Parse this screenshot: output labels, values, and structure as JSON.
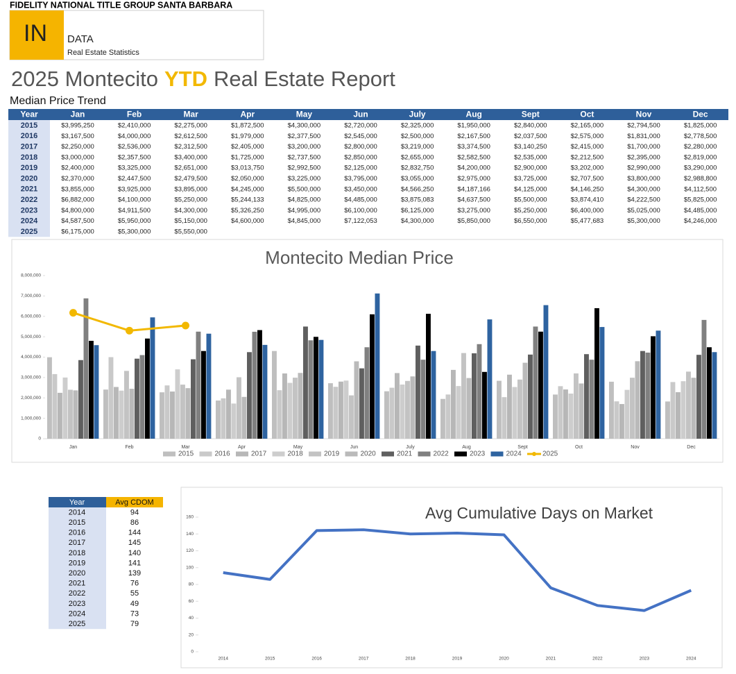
{
  "header": {
    "company": "FIDELITY NATIONAL TITLE GROUP SANTA BARBARA",
    "logo_in": "IN",
    "logo_data": "DATA",
    "logo_sub": "Real Estate Statistics"
  },
  "title": {
    "pre": "2025 Montecito",
    "highlight": "YTD",
    "post": "Real Estate Report"
  },
  "table_title": "Median Price Trend",
  "price_table": {
    "columns": [
      "Year",
      "Jan",
      "Feb",
      "Mar",
      "Apr",
      "May",
      "Jun",
      "July",
      "Aug",
      "Sept",
      "Oct",
      "Nov",
      "Dec"
    ],
    "rows": [
      [
        "2015",
        "$3,995,250",
        "$2,410,000",
        "$2,275,000",
        "$1,872,500",
        "$4,300,000",
        "$2,720,000",
        "$2,325,000",
        "$1,950,000",
        "$2,840,000",
        "$2,165,000",
        "$2,794,500",
        "$1,825,000"
      ],
      [
        "2016",
        "$3,167,500",
        "$4,000,000",
        "$2,612,500",
        "$1,979,000",
        "$2,377,500",
        "$2,545,000",
        "$2,500,000",
        "$2,167,500",
        "$2,037,500",
        "$2,575,000",
        "$1,831,000",
        "$2,778,500"
      ],
      [
        "2017",
        "$2,250,000",
        "$2,536,000",
        "$2,312,500",
        "$2,405,000",
        "$3,200,000",
        "$2,800,000",
        "$3,219,000",
        "$3,374,500",
        "$3,140,250",
        "$2,415,000",
        "$1,700,000",
        "$2,280,000"
      ],
      [
        "2018",
        "$3,000,000",
        "$2,357,500",
        "$3,400,000",
        "$1,725,000",
        "$2,737,500",
        "$2,850,000",
        "$2,655,000",
        "$2,582,500",
        "$2,535,000",
        "$2,212,500",
        "$2,395,000",
        "$2,819,000"
      ],
      [
        "2019",
        "$2,400,000",
        "$3,325,000",
        "$2,651,000",
        "$3,013,750",
        "$2,992,500",
        "$2,125,000",
        "$2,832,750",
        "$4,200,000",
        "$2,900,000",
        "$3,202,000",
        "$2,990,000",
        "$3,290,000"
      ],
      [
        "2020",
        "$2,370,000",
        "$2,447,500",
        "$2,479,500",
        "$2,050,000",
        "$3,225,000",
        "$3,795,000",
        "$3,055,000",
        "$2,975,000",
        "$3,725,000",
        "$2,707,500",
        "$3,800,000",
        "$2,988,800"
      ],
      [
        "2021",
        "$3,855,000",
        "$3,925,000",
        "$3,895,000",
        "$4,245,000",
        "$5,500,000",
        "$3,450,000",
        "$4,566,250",
        "$4,187,166",
        "$4,125,000",
        "$4,146,250",
        "$4,300,000",
        "$4,112,500"
      ],
      [
        "2022",
        "$6,882,000",
        "$4,100,000",
        "$5,250,000",
        "$5,244,133",
        "$4,825,000",
        "$4,485,000",
        "$3,875,083",
        "$4,637,500",
        "$5,500,000",
        "$3,874,410",
        "$4,222,500",
        "$5,825,000"
      ],
      [
        "2023",
        "$4,800,000",
        "$4,911,500",
        "$4,300,000",
        "$5,326,250",
        "$4,995,000",
        "$6,100,000",
        "$6,125,000",
        "$3,275,000",
        "$5,250,000",
        "$6,400,000",
        "$5,025,000",
        "$4,485,000"
      ],
      [
        "2024",
        "$4,587,500",
        "$5,950,000",
        "$5,150,000",
        "$4,600,000",
        "$4,845,000",
        "$7,122,053",
        "$4,300,000",
        "$5,850,000",
        "$6,550,000",
        "$5,477,683",
        "$5,300,000",
        "$4,246,000"
      ],
      [
        "2025",
        "$6,175,000",
        "$5,300,000",
        "$5,550,000"
      ]
    ]
  },
  "cdom_table": {
    "columns": [
      "Year",
      "Avg CDOM"
    ],
    "rows": [
      [
        "2014",
        "94"
      ],
      [
        "2015",
        "86"
      ],
      [
        "2016",
        "144"
      ],
      [
        "2017",
        "145"
      ],
      [
        "2018",
        "140"
      ],
      [
        "2019",
        "141"
      ],
      [
        "2020",
        "139"
      ],
      [
        "2021",
        "76"
      ],
      [
        "2022",
        "55"
      ],
      [
        "2023",
        "49"
      ],
      [
        "2024",
        "73"
      ],
      [
        "2025",
        "79"
      ]
    ]
  },
  "chart_data": [
    {
      "type": "bar",
      "title": "Montecito Median Price",
      "categories": [
        "Jan",
        "Feb",
        "Mar",
        "Apr",
        "May",
        "Jun",
        "July",
        "Aug",
        "Sept",
        "Oct",
        "Nov",
        "Dec"
      ],
      "series": [
        {
          "name": "2015",
          "color": "#bfbfbf",
          "values": [
            3995250,
            2410000,
            2275000,
            1872500,
            4300000,
            2720000,
            2325000,
            1950000,
            2840000,
            2165000,
            2794500,
            1825000
          ]
        },
        {
          "name": "2016",
          "color": "#c9c9c9",
          "values": [
            3167500,
            4000000,
            2612500,
            1979000,
            2377500,
            2545000,
            2500000,
            2167500,
            2037500,
            2575000,
            1831000,
            2778500
          ]
        },
        {
          "name": "2017",
          "color": "#b7b7b7",
          "values": [
            2250000,
            2536000,
            2312500,
            2405000,
            3200000,
            2800000,
            3219000,
            3374500,
            3140250,
            2415000,
            1700000,
            2280000
          ]
        },
        {
          "name": "2018",
          "color": "#cdcdcd",
          "values": [
            3000000,
            2357500,
            3400000,
            1725000,
            2737500,
            2850000,
            2655000,
            2582500,
            2535000,
            2212500,
            2395000,
            2819000
          ]
        },
        {
          "name": "2019",
          "color": "#c3c3c3",
          "values": [
            2400000,
            3325000,
            2651000,
            3013750,
            2992500,
            2125000,
            2832750,
            4200000,
            2900000,
            3202000,
            2990000,
            3290000
          ]
        },
        {
          "name": "2020",
          "color": "#bababa",
          "values": [
            2370000,
            2447500,
            2479500,
            2050000,
            3225000,
            3795000,
            3055000,
            2975000,
            3725000,
            2707500,
            3800000,
            2988800
          ]
        },
        {
          "name": "2021",
          "color": "#5f5f5f",
          "values": [
            3855000,
            3925000,
            3895000,
            4245000,
            5500000,
            3450000,
            4566250,
            4187166,
            4125000,
            4146250,
            4300000,
            4112500
          ]
        },
        {
          "name": "2022",
          "color": "#808080",
          "values": [
            6882000,
            4100000,
            5250000,
            5244133,
            4825000,
            4485000,
            3875083,
            4637500,
            5500000,
            3874410,
            4222500,
            5825000
          ]
        },
        {
          "name": "2023",
          "color": "#000000",
          "values": [
            4800000,
            4911500,
            4300000,
            5326250,
            4995000,
            6100000,
            6125000,
            3275000,
            5250000,
            6400000,
            5025000,
            4485000
          ]
        },
        {
          "name": "2024",
          "color": "#2e63a0",
          "values": [
            4587500,
            5950000,
            5150000,
            4600000,
            4845000,
            7122053,
            4300000,
            5850000,
            6550000,
            5477683,
            5300000,
            4246000
          ]
        },
        {
          "name": "2025",
          "color": "#f2b800",
          "type": "line",
          "values": [
            6175000,
            5300000,
            5550000,
            null,
            null,
            null,
            null,
            null,
            null,
            null,
            null,
            null
          ]
        }
      ],
      "ylim": [
        0,
        8000000
      ],
      "yticks": [
        0,
        {
          "value": 1000000,
          "label": "1,000,000"
        },
        {
          "value": 2000000,
          "label": "2,000,000"
        },
        {
          "value": 3000000,
          "label": "3,000,000"
        },
        {
          "value": 4000000,
          "label": "4,000,000"
        },
        {
          "value": 5000000,
          "label": "5,000,000"
        },
        {
          "value": 6000000,
          "label": "6,000,000"
        },
        {
          "value": 7000000,
          "label": "7,000,000"
        },
        {
          "value": 8000000,
          "label": "8,000,000"
        }
      ],
      "legend": "bottom"
    },
    {
      "type": "line",
      "title": "Avg Cumulative Days on Market",
      "categories": [
        "2014",
        "2015",
        "2016",
        "2017",
        "2018",
        "2019",
        "2020",
        "2021",
        "2022",
        "2023",
        "2024"
      ],
      "values": [
        94,
        86,
        144,
        145,
        140,
        141,
        139,
        76,
        55,
        49,
        73
      ],
      "color": "#4472c4",
      "ylim": [
        0,
        160
      ],
      "yticks": [
        0,
        20,
        40,
        60,
        80,
        100,
        120,
        140,
        160
      ]
    }
  ]
}
